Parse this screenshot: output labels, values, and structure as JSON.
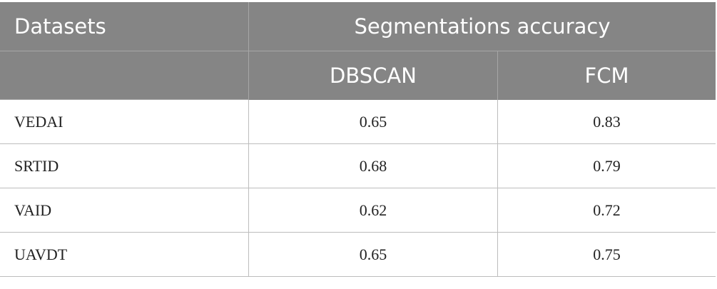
{
  "table": {
    "header": {
      "datasets": "Datasets",
      "group": "Segmentations accuracy",
      "subcolumns": [
        "DBSCAN",
        "FCM"
      ]
    },
    "rows": [
      [
        "VEDAI",
        "0.65",
        "0.83"
      ],
      [
        "SRTID",
        "0.68",
        "0.79"
      ],
      [
        "VAID",
        "0.62",
        "0.72"
      ],
      [
        "UAVDT",
        "0.65",
        "0.75"
      ]
    ]
  }
}
